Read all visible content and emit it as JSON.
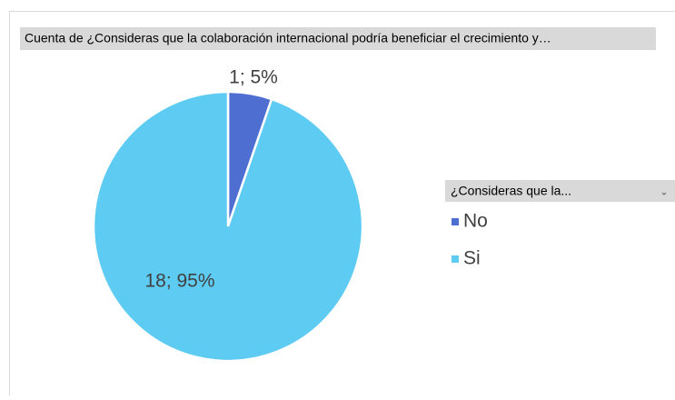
{
  "chart_data": {
    "type": "pie",
    "title": "Cuenta de ¿Consideras que la colaboración internacional podría beneficiar el crecimiento y…",
    "legend_title": "¿Consideras que la...",
    "categories": [
      "No",
      "Si"
    ],
    "values": [
      1,
      18
    ],
    "value_labels": [
      "1; 5%",
      "18; 95%"
    ],
    "colors": [
      "#4e6fd1",
      "#5ecbf2"
    ],
    "legend": "right"
  }
}
